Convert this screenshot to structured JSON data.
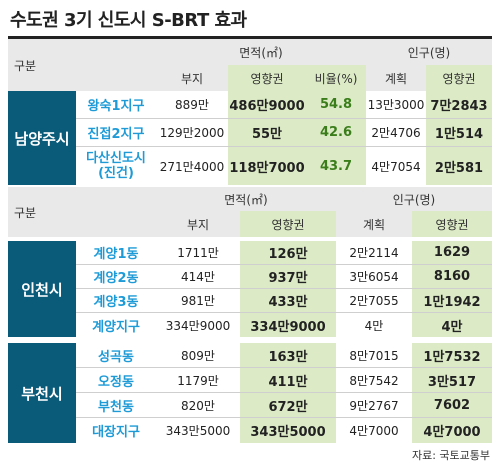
{
  "title": "수도권 3기 신도시 S-BRT 효과",
  "source": "자료: 국토교통부",
  "hdr": {
    "gubun": "구분",
    "area": "면적(㎡)",
    "pop": "인구(명)",
    "site": "부지",
    "affect": "영향권",
    "ratio": "비율(%)",
    "plan": "계획"
  },
  "namyang": {
    "label": "남양주시",
    "rows": [
      {
        "name": "왕숙1지구",
        "site": "889만",
        "area": "486만9000",
        "ratio": "54.8",
        "plan": "13만3000",
        "pop": "7만2843"
      },
      {
        "name": "진접2지구",
        "site": "129만2000",
        "area": "55만",
        "ratio": "42.6",
        "plan": "2만4706",
        "pop": "1만514"
      },
      {
        "name": "다산신도시\n(진건)",
        "site": "271만4000",
        "area": "118만7000",
        "ratio": "43.7",
        "plan": "4만7054",
        "pop": "2만581"
      }
    ]
  },
  "incheon": {
    "label": "인천시",
    "rows": [
      {
        "name": "계양1동",
        "site": "1711만",
        "area": "126만",
        "plan": "2만2114",
        "pop": "1629"
      },
      {
        "name": "계양2동",
        "site": "414만",
        "area": "937만",
        "plan": "3만6054",
        "pop": "8160"
      },
      {
        "name": "계양3동",
        "site": "981만",
        "area": "433만",
        "plan": "2만7055",
        "pop": "1만1942"
      },
      {
        "name": "계양지구",
        "site": "334만9000",
        "area": "334만9000",
        "plan": "4만",
        "pop": "4만"
      }
    ]
  },
  "bucheon": {
    "label": "부천시",
    "rows": [
      {
        "name": "성곡동",
        "site": "809만",
        "area": "163만",
        "plan": "8만7015",
        "pop": "1만7532"
      },
      {
        "name": "오정동",
        "site": "1179만",
        "area": "411만",
        "plan": "8만7542",
        "pop": "3만517"
      },
      {
        "name": "부천동",
        "site": "820만",
        "area": "672만",
        "plan": "9만2767",
        "pop": "7602"
      },
      {
        "name": "대장지구",
        "site": "343만5000",
        "area": "343만5000",
        "plan": "4만7000",
        "pop": "4만7000"
      }
    ]
  }
}
